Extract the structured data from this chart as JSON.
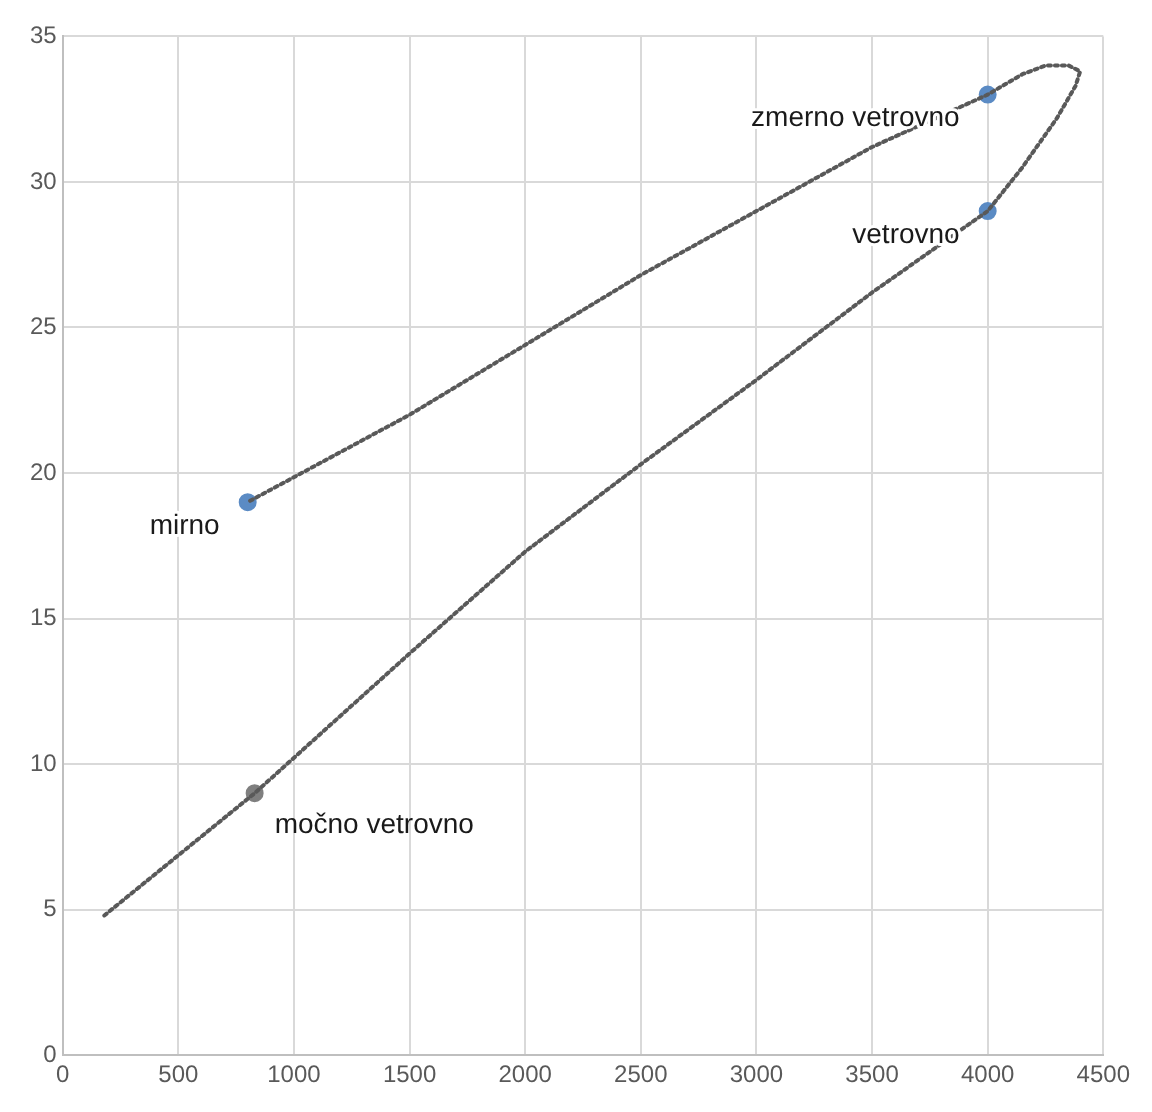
{
  "chart_data": {
    "type": "scatter",
    "x": [
      800,
      4000,
      4000,
      830
    ],
    "values": [
      19,
      33,
      29,
      9
    ],
    "colors": [
      "#5b8bc4",
      "#5b8bc4",
      "#5b8bc4",
      "#7f7f7f"
    ],
    "series": [
      {
        "type": "line",
        "color": "#595959",
        "line_style": "dotted",
        "marker": "none",
        "x": [
          180,
          830,
          1500,
          2000,
          2500,
          3000,
          3500,
          4000,
          4150,
          4300,
          4380,
          4400,
          4350,
          4250,
          4150,
          4000,
          3500,
          3000,
          2500,
          2000,
          1500,
          800
        ],
        "values": [
          4.8,
          9,
          13.8,
          17.3,
          20.3,
          23.2,
          26.2,
          29,
          30.5,
          32.2,
          33.3,
          33.8,
          34,
          34,
          33.7,
          33,
          31.2,
          29,
          26.8,
          24.4,
          22,
          19
        ]
      }
    ],
    "annotations": [
      {
        "text": "mirno",
        "x": 800,
        "y": 19
      },
      {
        "text": "zmerno vetrovno",
        "x": 4000,
        "y": 33
      },
      {
        "text": "vetrovno",
        "x": 4000,
        "y": 29
      },
      {
        "text": "močno vetrovno",
        "x": 830,
        "y": 9
      }
    ],
    "xlim": [
      0,
      4500
    ],
    "xticks": [
      0,
      500,
      1000,
      1500,
      2000,
      2500,
      3000,
      3500,
      4000,
      4500
    ],
    "ylim": [
      0,
      35
    ],
    "yticks": [
      0,
      5,
      10,
      15,
      20,
      25,
      30,
      35
    ],
    "grid": true,
    "legend": false,
    "marker": "circle"
  }
}
